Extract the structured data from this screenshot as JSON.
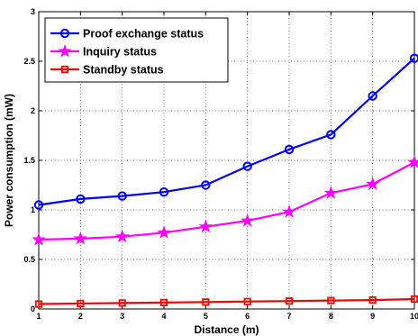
{
  "chart_data": {
    "type": "line",
    "xlabel": "Distance (m)",
    "ylabel": "Power consumption (mW)",
    "x": [
      1,
      2,
      3,
      4,
      5,
      6,
      7,
      8,
      9,
      10
    ],
    "xlim": [
      1,
      10
    ],
    "ylim": [
      0,
      3
    ],
    "xticks": [
      "1",
      "2",
      "3",
      "4",
      "5",
      "6",
      "7",
      "8",
      "9",
      "10"
    ],
    "yticks": [
      "0",
      "0.5",
      "1",
      "1.5",
      "2",
      "2.5",
      "3"
    ],
    "grid": true,
    "legend_position": "top-left",
    "series": [
      {
        "name": "Proof exchange status",
        "color": "#0000ff",
        "marker": "circle",
        "values": [
          1.05,
          1.11,
          1.14,
          1.18,
          1.25,
          1.44,
          1.61,
          1.76,
          2.15,
          2.53
        ]
      },
      {
        "name": "Inquiry status",
        "color": "#ff00ff",
        "marker": "star",
        "values": [
          0.7,
          0.71,
          0.73,
          0.77,
          0.83,
          0.89,
          0.98,
          1.17,
          1.26,
          1.48
        ]
      },
      {
        "name": "Standby status",
        "color": "#ff0000",
        "marker": "square",
        "values": [
          0.05,
          0.055,
          0.06,
          0.065,
          0.07,
          0.075,
          0.08,
          0.085,
          0.09,
          0.1
        ]
      }
    ]
  }
}
